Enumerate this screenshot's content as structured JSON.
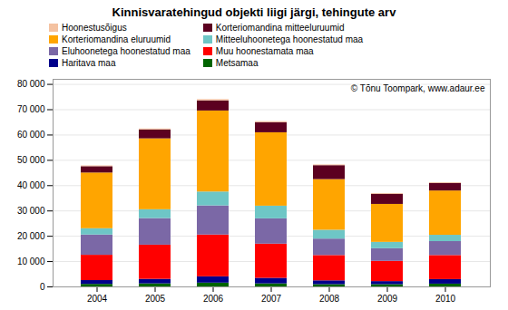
{
  "chart_data": {
    "type": "bar",
    "stacked": true,
    "title": "Kinnisvaratehingud objekti liigi järgi, tehingute arv",
    "categories": [
      "2004",
      "2005",
      "2006",
      "2007",
      "2008",
      "2009",
      "2010"
    ],
    "series": [
      {
        "name": "Metsamaa",
        "color": "#006400",
        "values": [
          1000,
          1200,
          1500,
          1200,
          900,
          900,
          1100
        ]
      },
      {
        "name": "Haritava maa",
        "color": "#00008b",
        "values": [
          1500,
          1800,
          2500,
          2200,
          1500,
          1200,
          1800
        ]
      },
      {
        "name": "Muu hoonestamata maa",
        "color": "#ff0000",
        "values": [
          10000,
          13500,
          16500,
          13500,
          10000,
          8000,
          9500
        ]
      },
      {
        "name": "Eluhoonetega hoonestatud maa",
        "color": "#7b68a6",
        "values": [
          8000,
          10500,
          11500,
          10000,
          6500,
          5000,
          5500
        ]
      },
      {
        "name": "Mitteeluhoonetega hoonestatud maa",
        "color": "#6ec6c6",
        "values": [
          2500,
          3500,
          5500,
          5000,
          3500,
          2500,
          2500
        ]
      },
      {
        "name": "Korteriomandina eluruumid",
        "color": "#ffa500",
        "values": [
          22000,
          28000,
          32000,
          29000,
          20000,
          15000,
          17500
        ]
      },
      {
        "name": "Korteriomandina mitteeluruumid",
        "color": "#5c0020",
        "values": [
          2500,
          3500,
          4000,
          4000,
          5500,
          4000,
          3000
        ]
      },
      {
        "name": "Hoonestusõigus",
        "color": "#f4c2a1",
        "values": [
          300,
          400,
          500,
          400,
          300,
          300,
          300
        ]
      }
    ],
    "ylim": [
      0,
      82000
    ],
    "yticks": [
      0,
      {
        "value": 10000,
        "label": "10 000"
      },
      {
        "value": 20000,
        "label": "20 000"
      },
      {
        "value": 30000,
        "label": "30 000"
      },
      {
        "value": 40000,
        "label": "40 000"
      },
      {
        "value": 50000,
        "label": "50 000"
      },
      {
        "value": 60000,
        "label": "60 000"
      },
      {
        "value": 70000,
        "label": "70 000"
      },
      {
        "value": 80000,
        "label": "80 000"
      }
    ],
    "grid": true,
    "legend": "top",
    "annotations": [
      "© Tõnu Toompark, www.adaur.ee"
    ]
  }
}
